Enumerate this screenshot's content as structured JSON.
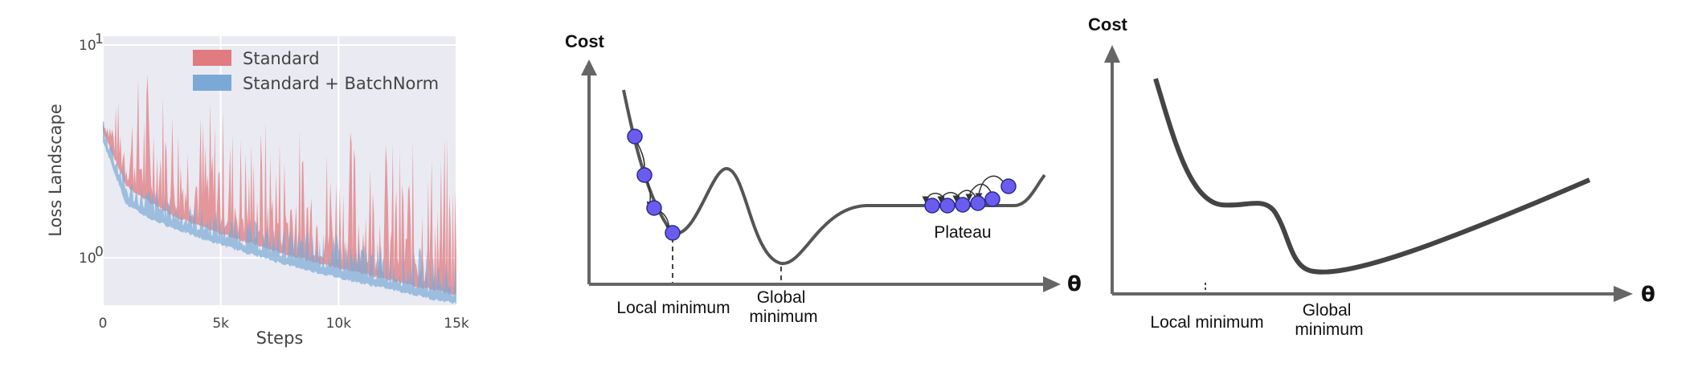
{
  "chart_data": [
    {
      "type": "area",
      "xlabel": "Steps",
      "ylabel": "Loss Landscape",
      "yscale": "log",
      "xlim": [
        0,
        15000
      ],
      "ylim": [
        0.6,
        11
      ],
      "x_ticks": [
        "0",
        "5k",
        "10k",
        "15k"
      ],
      "x_tick_values": [
        0,
        5000,
        10000,
        15000
      ],
      "y_ticks": [
        "10",
        "10"
      ],
      "y_tick_exponents": [
        "1",
        "0"
      ],
      "y_tick_values": [
        10,
        1
      ],
      "grid": true,
      "legend_position": "top-right",
      "series": [
        {
          "name": "Standard",
          "color": "#e07b7f",
          "x": [
            0,
            1000,
            2000,
            3000,
            4000,
            5000,
            6000,
            7000,
            8000,
            9000,
            10000,
            11000,
            12000,
            13000,
            14000,
            15000
          ],
          "lower": [
            4.0,
            2.2,
            1.85,
            1.6,
            1.45,
            1.32,
            1.22,
            1.12,
            1.04,
            0.97,
            0.91,
            0.86,
            0.81,
            0.76,
            0.72,
            0.68
          ],
          "upper": [
            4.6,
            6.5,
            9.5,
            7.0,
            6.0,
            5.8,
            4.5,
            5.0,
            4.6,
            4.2,
            4.2,
            4.5,
            4.0,
            3.6,
            4.0,
            4.0
          ]
        },
        {
          "name": "Standard + BatchNorm",
          "color": "#7aa9d6",
          "x": [
            0,
            1000,
            2000,
            3000,
            4000,
            5000,
            6000,
            7000,
            8000,
            9000,
            10000,
            11000,
            12000,
            13000,
            14000,
            15000
          ],
          "lower": [
            3.6,
            1.8,
            1.55,
            1.4,
            1.27,
            1.17,
            1.08,
            1.0,
            0.93,
            0.87,
            0.82,
            0.77,
            0.73,
            0.69,
            0.65,
            0.62
          ],
          "upper": [
            5.0,
            2.5,
            2.2,
            1.95,
            1.8,
            1.65,
            1.55,
            1.45,
            1.4,
            1.35,
            1.3,
            1.25,
            1.2,
            1.15,
            1.1,
            1.05
          ]
        }
      ]
    },
    {
      "type": "line",
      "ylabel": "Cost",
      "xlabel": "θ",
      "annotations": [
        "Local minimum",
        "Global\nminimum",
        "Plateau"
      ],
      "markers_color": "#6b5cf0"
    },
    {
      "type": "line",
      "ylabel": "Cost",
      "xlabel": "θ",
      "annotations": [
        "Local minimum",
        "Global\nminimum"
      ]
    }
  ],
  "colors": {
    "plot_bg": "#eaeaf2",
    "curve": "#555555",
    "arrow": "#666666"
  }
}
